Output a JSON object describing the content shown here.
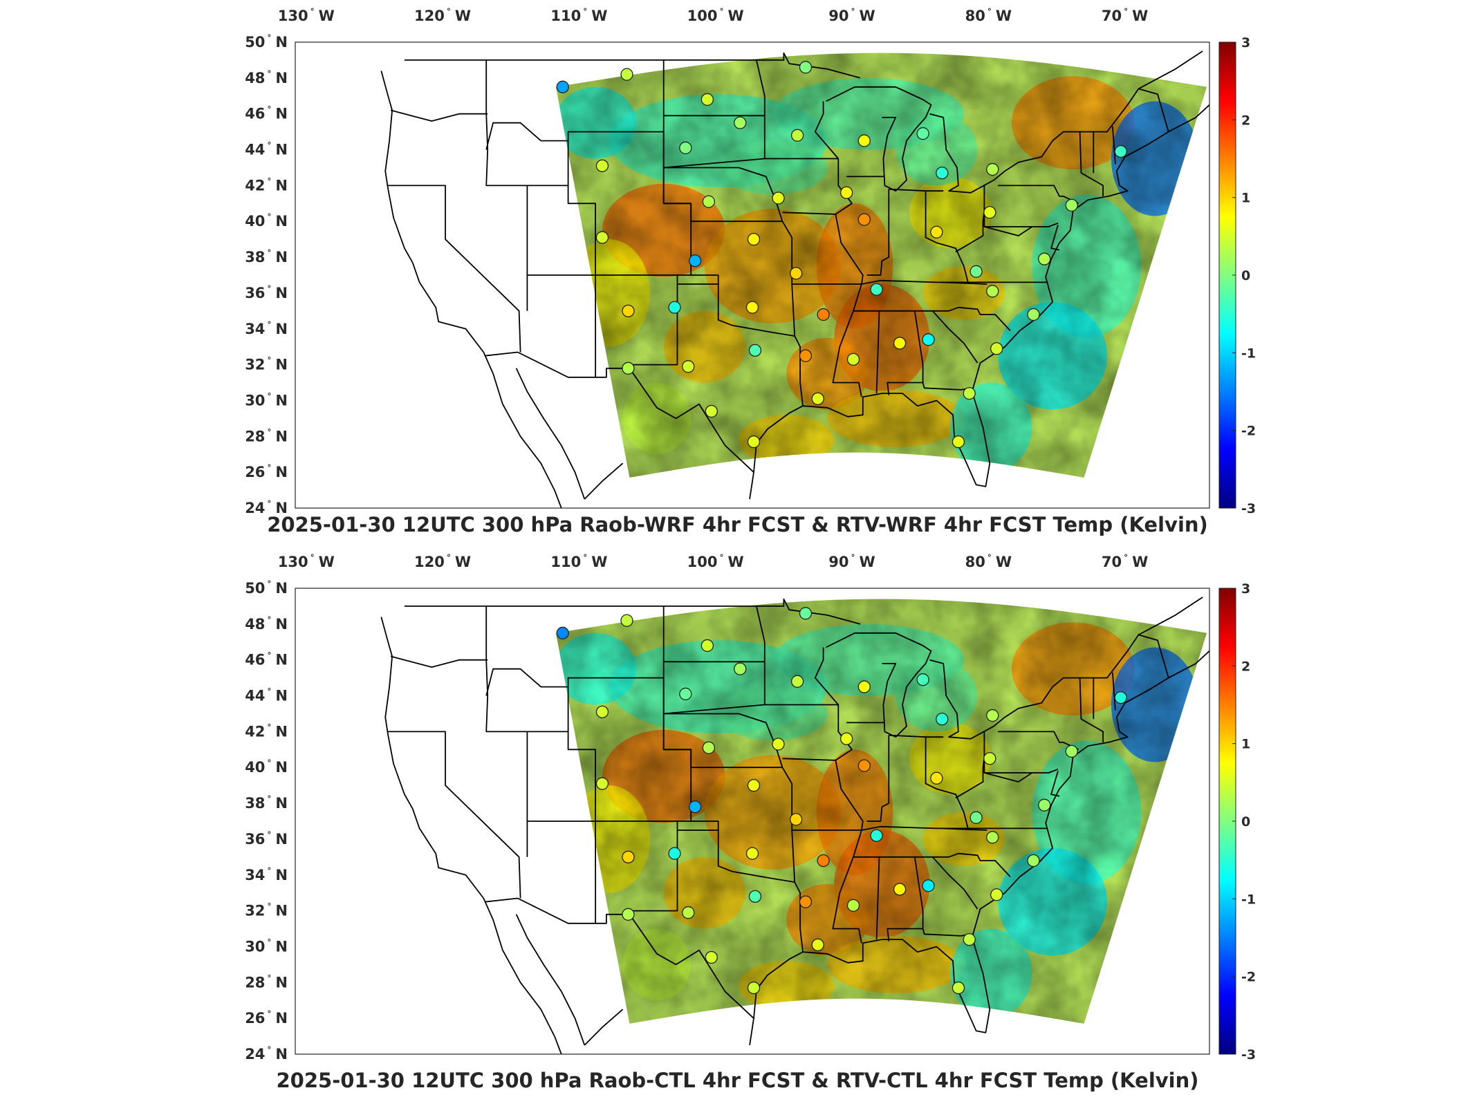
{
  "panels": [
    {
      "id": "raob-wrf",
      "title": "2025-01-30 12UTC 300 hPa Raob-WRF 4hr FCST & RTV-WRF 4hr FCST Temp (Kelvin)",
      "station_shift": 0
    },
    {
      "id": "raob-ctl",
      "title": "2025-01-30 12UTC 300 hPa Raob-CTL 4hr FCST & RTV-CTL 4hr FCST Temp (Kelvin)",
      "station_shift": 0.15
    }
  ],
  "map": {
    "lon_labels": [
      "130",
      "120",
      "110",
      "100",
      "90",
      "80",
      "70"
    ],
    "lon_values": [
      -130,
      -120,
      -110,
      -100,
      -90,
      -80,
      -70
    ],
    "lon_suffix": "W",
    "lat_labels": [
      "50",
      "48",
      "46",
      "44",
      "42",
      "40",
      "38",
      "36",
      "34",
      "32",
      "30",
      "28",
      "26",
      "24"
    ],
    "lat_values": [
      50,
      48,
      46,
      44,
      42,
      40,
      38,
      36,
      34,
      32,
      30,
      28,
      26,
      24
    ],
    "lat_suffix": "N",
    "degree_symbol": "°",
    "lon_range": [
      -131,
      -64
    ],
    "lat_range": [
      24,
      50
    ]
  },
  "colorbar": {
    "colormap": "jet",
    "range": [
      -3,
      3
    ],
    "tick_labels": [
      "3",
      "2",
      "1",
      "0",
      "-1",
      "-2",
      "-3"
    ],
    "tick_values": [
      3,
      2,
      1,
      0,
      -1,
      -2,
      -3
    ],
    "unit": "Kelvin"
  },
  "stations": [
    {
      "lon": -111.4,
      "lat": 47.5,
      "value": -1.3
    },
    {
      "lon": -106.7,
      "lat": 48.2,
      "value": 0.4
    },
    {
      "lon": -100.8,
      "lat": 46.8,
      "value": 0.5
    },
    {
      "lon": -93.6,
      "lat": 48.6,
      "value": 0.0
    },
    {
      "lon": -98.4,
      "lat": 45.5,
      "value": 0.2
    },
    {
      "lon": -94.2,
      "lat": 44.8,
      "value": 0.4
    },
    {
      "lon": -102.4,
      "lat": 44.1,
      "value": 0.0
    },
    {
      "lon": -108.5,
      "lat": 43.1,
      "value": 0.5
    },
    {
      "lon": -89.3,
      "lat": 44.5,
      "value": 0.7
    },
    {
      "lon": -85.0,
      "lat": 44.9,
      "value": -0.2
    },
    {
      "lon": -83.6,
      "lat": 42.7,
      "value": -0.5
    },
    {
      "lon": -79.9,
      "lat": 42.9,
      "value": 0.3
    },
    {
      "lon": -70.5,
      "lat": 43.9,
      "value": -0.4
    },
    {
      "lon": -95.6,
      "lat": 41.3,
      "value": 0.6
    },
    {
      "lon": -100.7,
      "lat": 41.1,
      "value": 0.3
    },
    {
      "lon": -90.6,
      "lat": 41.6,
      "value": 0.8
    },
    {
      "lon": -89.3,
      "lat": 40.1,
      "value": 1.4
    },
    {
      "lon": -84.0,
      "lat": 39.4,
      "value": 0.9
    },
    {
      "lon": -80.1,
      "lat": 40.5,
      "value": 0.6
    },
    {
      "lon": -74.1,
      "lat": 40.9,
      "value": 0.2
    },
    {
      "lon": -108.5,
      "lat": 39.1,
      "value": 0.5
    },
    {
      "lon": -97.4,
      "lat": 39.0,
      "value": 0.8
    },
    {
      "lon": -101.7,
      "lat": 37.8,
      "value": -1.2
    },
    {
      "lon": -94.3,
      "lat": 37.1,
      "value": 1.0
    },
    {
      "lon": -88.4,
      "lat": 36.2,
      "value": -0.4
    },
    {
      "lon": -81.1,
      "lat": 37.2,
      "value": -0.1
    },
    {
      "lon": -79.9,
      "lat": 36.1,
      "value": 0.3
    },
    {
      "lon": -76.1,
      "lat": 37.9,
      "value": 0.3
    },
    {
      "lon": -106.6,
      "lat": 35.0,
      "value": 1.0
    },
    {
      "lon": -103.2,
      "lat": 35.2,
      "value": -0.6
    },
    {
      "lon": -97.5,
      "lat": 35.2,
      "value": 0.8
    },
    {
      "lon": -92.3,
      "lat": 34.8,
      "value": 1.5
    },
    {
      "lon": -86.7,
      "lat": 33.2,
      "value": 0.8
    },
    {
      "lon": -84.6,
      "lat": 33.4,
      "value": -0.7
    },
    {
      "lon": -79.6,
      "lat": 32.9,
      "value": 0.5
    },
    {
      "lon": -76.9,
      "lat": 34.8,
      "value": 0.2
    },
    {
      "lon": -90.1,
      "lat": 32.3,
      "value": 0.5
    },
    {
      "lon": -93.6,
      "lat": 32.5,
      "value": 1.4
    },
    {
      "lon": -97.3,
      "lat": 32.8,
      "value": -0.3
    },
    {
      "lon": -102.2,
      "lat": 31.9,
      "value": 0.5
    },
    {
      "lon": -106.6,
      "lat": 31.8,
      "value": 0.3
    },
    {
      "lon": -100.5,
      "lat": 29.4,
      "value": 0.5
    },
    {
      "lon": -97.4,
      "lat": 27.7,
      "value": 0.6
    },
    {
      "lon": -92.7,
      "lat": 30.1,
      "value": 0.6
    },
    {
      "lon": -81.6,
      "lat": 30.4,
      "value": 0.4
    },
    {
      "lon": -82.4,
      "lat": 27.7,
      "value": 0.6
    }
  ]
}
